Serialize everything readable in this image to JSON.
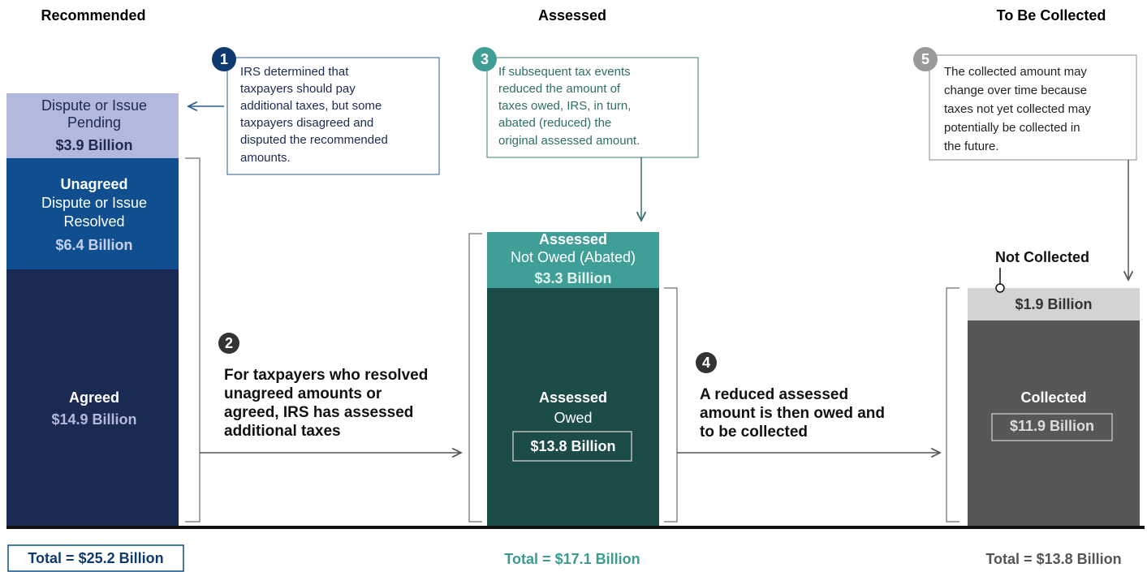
{
  "headers": [
    "Recommended",
    "Assessed",
    "To Be Collected"
  ],
  "recommended": {
    "pending": {
      "lines": [
        "Dispute or Issue",
        "Pending"
      ],
      "amount": "$3.9 Billion"
    },
    "unagreed": {
      "title": "Unagreed",
      "lines": [
        "Dispute or Issue",
        "Resolved"
      ],
      "amount": "$6.4 Billion"
    },
    "agreed": {
      "title": "Agreed",
      "amount": "$14.9 Billion"
    },
    "total": "Total = $25.2 Billion"
  },
  "assessed": {
    "abated": {
      "title": "Assessed",
      "line": "Not Owed (Abated)",
      "amount": "$3.3 Billion"
    },
    "owed": {
      "title": "Assessed",
      "line": "Owed",
      "amount": "$13.8 Billion"
    },
    "total": "Total = $17.1 Billion"
  },
  "collected": {
    "not_collected": {
      "title": "Not Collected",
      "amount": "$1.9 Billion"
    },
    "collected": {
      "title": "Collected",
      "amount": "$11.9 Billion"
    },
    "total": "Total = $13.8 Billion"
  },
  "notes": [
    {
      "number": "1",
      "lines": [
        "IRS determined that",
        "taxpayers should pay",
        "additional taxes, but some",
        "taxpayers disagreed and",
        "disputed the recommended",
        "amounts."
      ]
    },
    {
      "number": "2",
      "lines": [
        "For taxpayers who resolved",
        "unagreed amounts or",
        "agreed, IRS has assessed",
        "additional taxes"
      ]
    },
    {
      "number": "3",
      "lines": [
        "If subsequent tax events",
        "reduced the amount of",
        "taxes owed, IRS, in turn,",
        "abated (reduced) the",
        "original assessed amount."
      ]
    },
    {
      "number": "4",
      "lines": [
        "A reduced assessed",
        "amount is then owed and",
        "to be collected"
      ]
    },
    {
      "number": "5",
      "lines": [
        "The collected amount may",
        "change over time because",
        "taxes not yet collected may",
        "potentially be collected in",
        "the future."
      ]
    }
  ]
}
